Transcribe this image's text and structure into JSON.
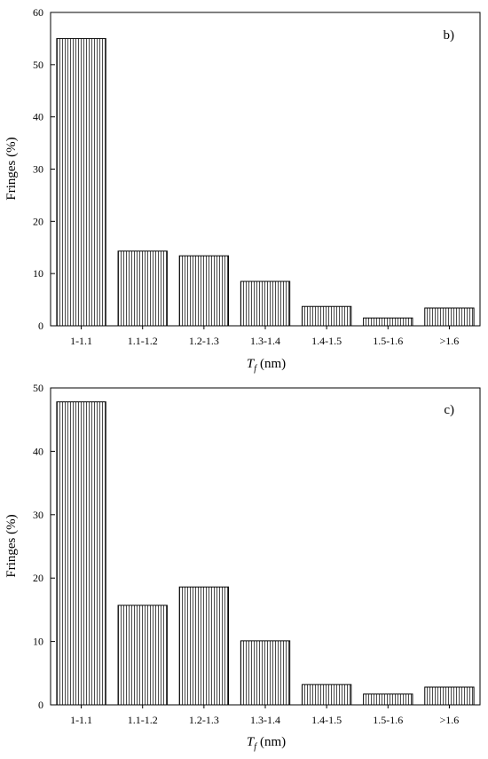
{
  "chart_data": [
    {
      "type": "bar",
      "panel_label": "b)",
      "categories": [
        "1-1.1",
        "1.1-1.2",
        "1.2-1.3",
        "1.3-1.4",
        "1.4-1.5",
        "1.5-1.6",
        ">1.6"
      ],
      "values": [
        55.0,
        14.3,
        13.4,
        8.5,
        3.7,
        1.5,
        3.4
      ],
      "ylabel": "Fringes (%)",
      "xlabel": {
        "symbol": "T",
        "subscript": "f",
        "unit": "(nm)"
      },
      "ylim": [
        0,
        60
      ],
      "yticks": [
        0,
        10,
        20,
        30,
        40,
        50,
        60
      ],
      "grid": false,
      "bar_fill": "vertical-hatch",
      "colors": {
        "stroke": "#000000",
        "background": "#ffffff"
      }
    },
    {
      "type": "bar",
      "panel_label": "c)",
      "categories": [
        "1-1.1",
        "1.1-1.2",
        "1.2-1.3",
        "1.3-1.4",
        "1.4-1.5",
        "1.5-1.6",
        ">1.6"
      ],
      "values": [
        47.8,
        15.7,
        18.6,
        10.1,
        3.2,
        1.7,
        2.8
      ],
      "ylabel": "Fringes (%)",
      "xlabel": {
        "symbol": "T",
        "subscript": "f",
        "unit": "(nm)"
      },
      "ylim": [
        0,
        50
      ],
      "yticks": [
        0,
        10,
        20,
        30,
        40,
        50
      ],
      "grid": false,
      "bar_fill": "vertical-hatch",
      "colors": {
        "stroke": "#000000",
        "background": "#ffffff"
      }
    }
  ]
}
